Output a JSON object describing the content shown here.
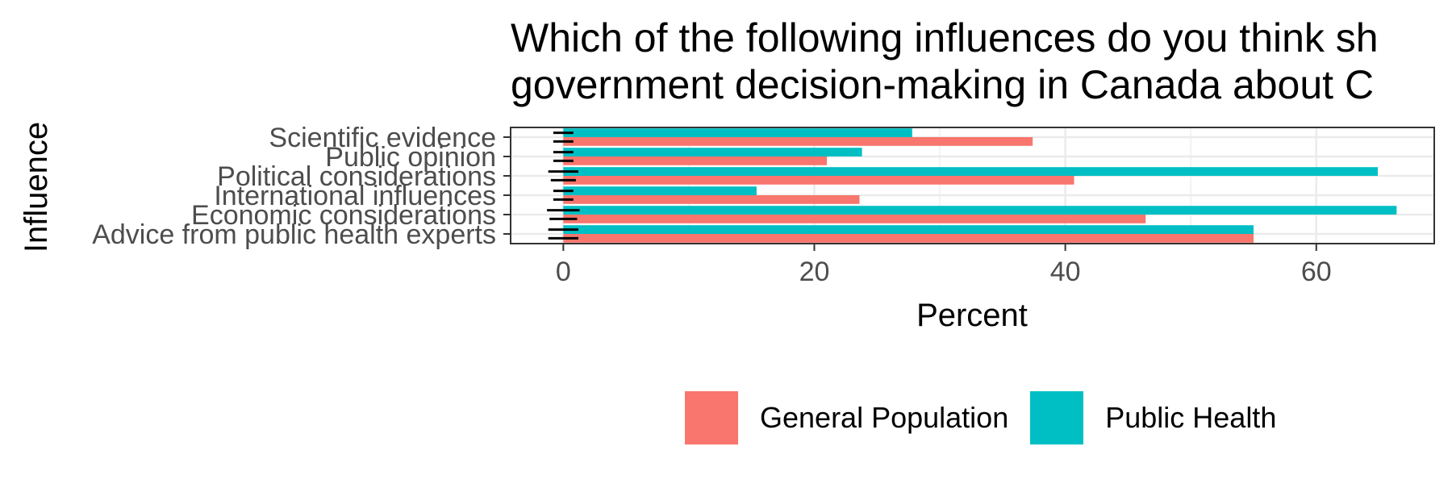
{
  "chart_data": {
    "type": "bar",
    "orientation": "horizontal",
    "title_lines": [
      "Which of the following influences do you think sh",
      "government decision-making in Canada about C"
    ],
    "xlabel": "Percent",
    "ylabel": "Influence",
    "xlim": [
      -4.2,
      69.4
    ],
    "xticks": [
      0,
      20,
      40,
      60
    ],
    "categories": [
      "Scientific evidence",
      "Public opinion",
      "Political considerations",
      "International influences",
      "Economic considerations",
      "Advice from public health experts"
    ],
    "series": [
      {
        "name": "General Population",
        "color": "#F8766D",
        "values": [
          37.4,
          21.0,
          40.7,
          23.6,
          46.4,
          55.0
        ],
        "error_half_width": [
          0.8,
          0.8,
          1.0,
          0.8,
          1.1,
          1.2
        ]
      },
      {
        "name": "Public Health",
        "color": "#00BFC4",
        "values": [
          27.8,
          23.8,
          64.9,
          15.4,
          66.4,
          55.0
        ],
        "error_half_width": [
          0.8,
          0.8,
          1.2,
          0.8,
          1.3,
          1.2
        ]
      }
    ],
    "grid": true,
    "legend_position": "bottom"
  }
}
